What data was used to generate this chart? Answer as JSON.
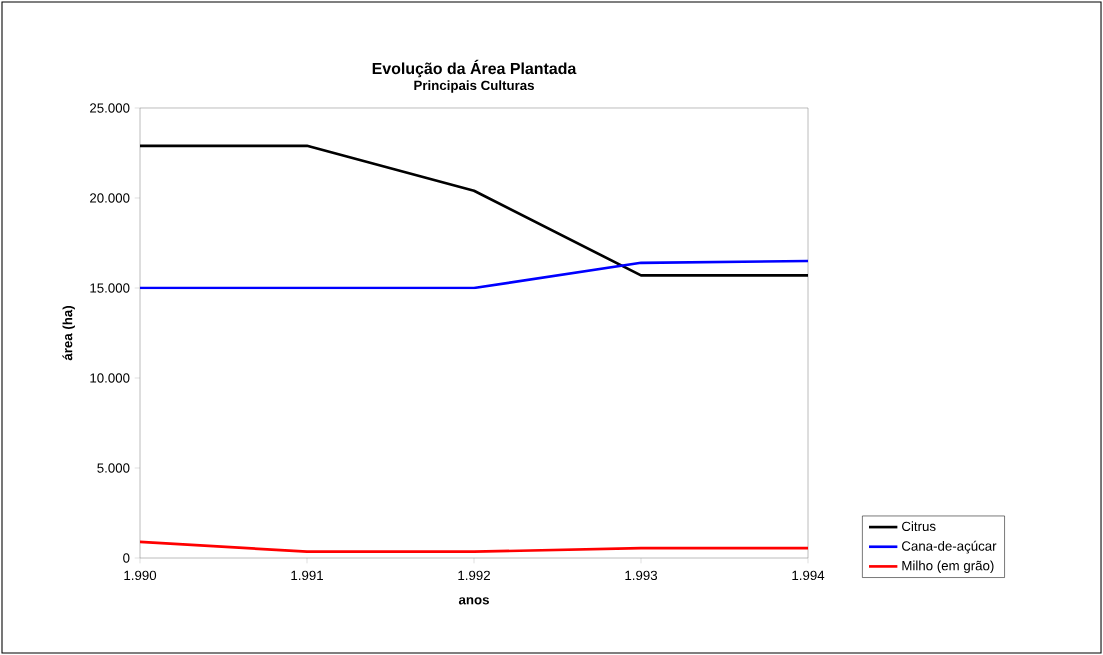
{
  "chart_data": {
    "type": "line",
    "title": "Evolução da Área Plantada",
    "subtitle": "Principais Culturas",
    "xlabel": "anos",
    "ylabel": "área (ha)",
    "x": [
      1990,
      1991,
      1992,
      1993,
      1994
    ],
    "series": [
      {
        "name": "Citrus",
        "color": "#000000",
        "values": [
          22900,
          22900,
          20400,
          15700,
          15700
        ]
      },
      {
        "name": "Cana-de-açúcar",
        "color": "#0000ff",
        "values": [
          15000,
          15000,
          15000,
          16400,
          16500
        ]
      },
      {
        "name": "Milho (em grão)",
        "color": "#ff0000",
        "values": [
          900,
          350,
          350,
          550,
          550
        ]
      }
    ],
    "xlim": [
      1990,
      1994
    ],
    "xticks": [
      {
        "value": 1990,
        "label": "1.990"
      },
      {
        "value": 1991,
        "label": "1.991"
      },
      {
        "value": 1992,
        "label": "1.992"
      },
      {
        "value": 1993,
        "label": "1.993"
      },
      {
        "value": 1994,
        "label": "1.994"
      }
    ],
    "ylim": [
      0,
      25000
    ],
    "yticks": [
      {
        "value": 0,
        "label": "0"
      },
      {
        "value": 5000,
        "label": "5.000"
      },
      {
        "value": 10000,
        "label": "10.000"
      },
      {
        "value": 15000,
        "label": "15.000"
      },
      {
        "value": 20000,
        "label": "20.000"
      },
      {
        "value": 25000,
        "label": "25.000"
      }
    ],
    "legend": "right",
    "grid": false,
    "marker": "none",
    "line_style": "solid"
  }
}
